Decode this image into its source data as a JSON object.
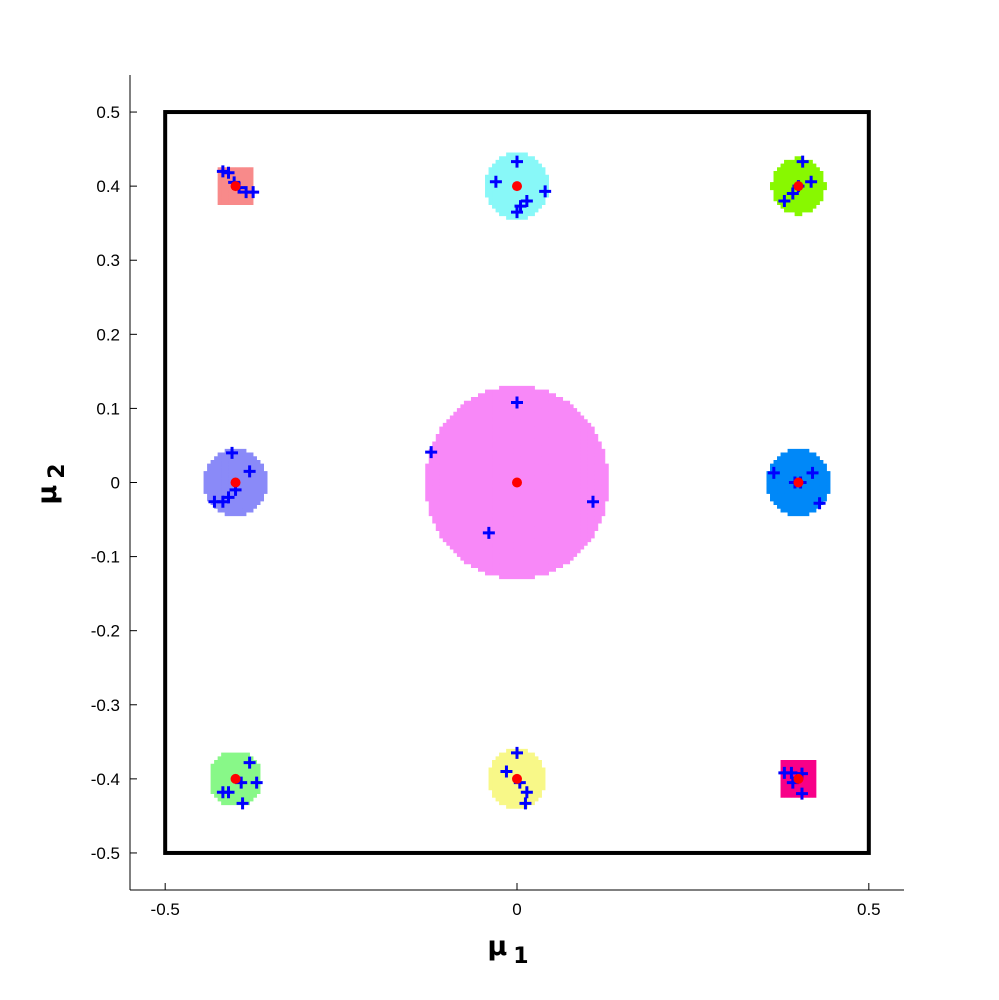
{
  "chart_data": {
    "type": "scatter",
    "title": "",
    "xlabel": "μ",
    "xlabel_subscript": "1",
    "ylabel": "μ",
    "ylabel_subscript": "2",
    "xlim": [
      -0.55,
      0.55
    ],
    "ylim": [
      -0.55,
      0.55
    ],
    "xticks": [
      -0.5,
      0,
      0.5
    ],
    "xtick_labels": [
      "-0.5",
      "0",
      "0.5"
    ],
    "yticks": [
      0.5,
      0.4,
      0.3,
      0.2,
      0.1,
      0,
      -0.1,
      -0.2,
      -0.3,
      -0.4,
      -0.5
    ],
    "ytick_labels": [
      "0.5",
      "0.4",
      "0.3",
      "0.2",
      "0.1",
      "0",
      "-0.1",
      "-0.2",
      "-0.3",
      "-0.4",
      "-0.5"
    ],
    "grid": false,
    "domain_box": [
      -0.5,
      0.5,
      -0.5,
      0.5
    ],
    "regions": [
      {
        "center": [
          -0.4,
          0.4
        ],
        "radius": 0.025,
        "shape": "square",
        "color": "#f88a8a"
      },
      {
        "center": [
          0.0,
          0.4
        ],
        "radius": 0.045,
        "shape": "blob",
        "color": "#88f8f8"
      },
      {
        "center": [
          0.4,
          0.4
        ],
        "radius": 0.038,
        "shape": "blob",
        "color": "#88f800"
      },
      {
        "center": [
          -0.4,
          0.0
        ],
        "radius": 0.045,
        "shape": "blob",
        "color": "#8a8af8"
      },
      {
        "center": [
          0.0,
          0.0
        ],
        "radius": 0.13,
        "shape": "blob",
        "color": "#f888f8"
      },
      {
        "center": [
          0.4,
          0.0
        ],
        "radius": 0.045,
        "shape": "blob",
        "color": "#0088f8"
      },
      {
        "center": [
          -0.4,
          -0.4
        ],
        "radius": 0.037,
        "shape": "blob",
        "color": "#88f888"
      },
      {
        "center": [
          0.0,
          -0.4
        ],
        "radius": 0.04,
        "shape": "blob",
        "color": "#f8f888"
      },
      {
        "center": [
          0.4,
          -0.4
        ],
        "radius": 0.025,
        "shape": "square",
        "color": "#f80088"
      }
    ],
    "series": [
      {
        "marker": "+",
        "color": "#0000ff",
        "points": [
          [
            -0.418,
            0.42
          ],
          [
            -0.41,
            0.418
          ],
          [
            -0.402,
            0.405
          ],
          [
            -0.395,
            0.398
          ],
          [
            -0.385,
            0.392
          ],
          [
            -0.375,
            0.392
          ],
          [
            0.0,
            0.433
          ],
          [
            -0.03,
            0.406
          ],
          [
            0.04,
            0.393
          ],
          [
            0.014,
            0.38
          ],
          [
            0.005,
            0.373
          ],
          [
            0.0,
            0.365
          ],
          [
            0.406,
            0.433
          ],
          [
            0.418,
            0.406
          ],
          [
            0.4,
            0.4
          ],
          [
            0.392,
            0.39
          ],
          [
            0.38,
            0.38
          ],
          [
            -0.405,
            0.04
          ],
          [
            -0.38,
            0.015
          ],
          [
            -0.4,
            -0.01
          ],
          [
            -0.41,
            -0.02
          ],
          [
            -0.418,
            -0.026
          ],
          [
            -0.43,
            -0.026
          ],
          [
            0.0,
            0.108
          ],
          [
            -0.122,
            0.041
          ],
          [
            0.108,
            -0.026
          ],
          [
            -0.04,
            -0.068
          ],
          [
            0.365,
            0.013
          ],
          [
            0.42,
            0.013
          ],
          [
            0.395,
            0.0
          ],
          [
            0.403,
            0.0
          ],
          [
            0.43,
            -0.028
          ],
          [
            -0.38,
            -0.378
          ],
          [
            -0.37,
            -0.405
          ],
          [
            -0.392,
            -0.405
          ],
          [
            -0.41,
            -0.418
          ],
          [
            -0.39,
            -0.433
          ],
          [
            -0.418,
            -0.418
          ],
          [
            0.0,
            -0.365
          ],
          [
            -0.015,
            -0.39
          ],
          [
            0.014,
            -0.418
          ],
          [
            0.012,
            -0.433
          ],
          [
            0.004,
            -0.405
          ],
          [
            0.38,
            -0.392
          ],
          [
            0.39,
            -0.392
          ],
          [
            0.405,
            -0.393
          ],
          [
            0.392,
            -0.405
          ],
          [
            0.405,
            -0.42
          ]
        ]
      },
      {
        "marker": "dot",
        "color": "#ff0000",
        "points": [
          [
            -0.4,
            0.4
          ],
          [
            0.0,
            0.4
          ],
          [
            0.4,
            0.4
          ],
          [
            -0.4,
            0.0
          ],
          [
            0.0,
            0.0
          ],
          [
            0.4,
            0.0
          ],
          [
            -0.4,
            -0.4
          ],
          [
            0.0,
            -0.4
          ],
          [
            0.4,
            -0.4
          ]
        ]
      }
    ]
  }
}
